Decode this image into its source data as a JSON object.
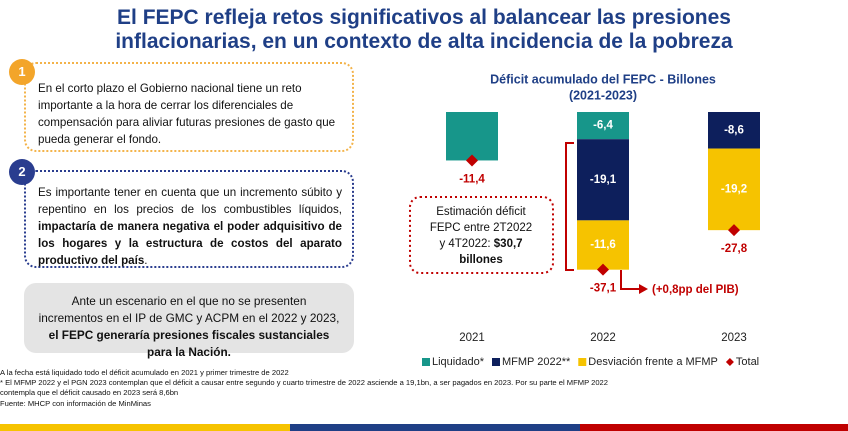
{
  "header": {
    "title_lines": [
      "El FEPC refleja retos significativos al balancear las presiones",
      "inflacionarias, en un contexto de alta incidencia de la pobreza"
    ]
  },
  "boxes": [
    {
      "number": "1",
      "parts": [
        "En el corto plazo el Gobierno nacional tiene un reto importante a la hora de cerrar los diferenciales de compensación para aliviar futuras presiones de gasto que pueda generar el fondo."
      ]
    },
    {
      "number": "2",
      "parts": [
        "Es importante tener en cuenta que un incremento súbito y repentino en los precios de los combustibles líquidos, ",
        "impactaría de manera negativa el poder adquisitivo de los hogares y la estructura de costos del aparato productivo del país",
        "."
      ]
    },
    {
      "parts": [
        "Ante un escenario en el que no se presenten incrementos en el IP de GMC y ACPM en el 2022 y 2023, ",
        "el FEPC generaría presiones fiscales sustanciales para la Nación."
      ]
    }
  ],
  "footnotes": [
    "A la fecha está liquidado todo el déficit acumulado en 2021 y primer trimestre de 2022",
    "* El MFMP 2022 y el PGN 2023 contemplan que el déficit a causar entre segundo y cuarto trimestre de 2022 asciende a 19,1bn, a ser pagados en 2023. Por su parte el MFMP 2022",
    "contempla que el déficit causado en 2023 será 8,6bn",
    "Fuente: MHCP con información de MinMinas"
  ],
  "chart_data": {
    "type": "bar",
    "stacked": true,
    "title": "Déficit acumulado del FEPC - Billones",
    "subtitle": "(2021-2023)",
    "categories": [
      "2021",
      "2022",
      "2023"
    ],
    "ylim": [
      -40,
      0
    ],
    "series": [
      {
        "name": "Liquidado*",
        "color": "#17968a",
        "values": [
          -11.4,
          -6.4,
          null
        ],
        "value_labels": [
          null,
          "-6,4",
          null
        ]
      },
      {
        "name": "MFMP 2022**",
        "color": "#0d1f5c",
        "values": [
          null,
          -19.1,
          -8.6
        ],
        "value_labels": [
          null,
          "-19,1",
          "-8,6"
        ]
      },
      {
        "name": "Desviación frente a MFMP",
        "color": "#f6c300",
        "values": [
          null,
          -11.6,
          -19.2
        ],
        "value_labels": [
          null,
          "-11,6",
          "-19,2"
        ]
      },
      {
        "name": "Total",
        "color": "#c00000",
        "marker": "diamond",
        "values": [
          -11.4,
          -37.1,
          -27.8
        ],
        "value_labels": [
          "-11,4",
          "-37,1",
          "-27,8"
        ]
      }
    ],
    "annotations": [
      {
        "lines": [
          "Estimación déficit",
          "FEPC entre 2T2022",
          "y 4T2022: ",
          "$30,7",
          "billones"
        ]
      },
      {
        "text": "(+0,8pp del PIB)"
      }
    ]
  }
}
